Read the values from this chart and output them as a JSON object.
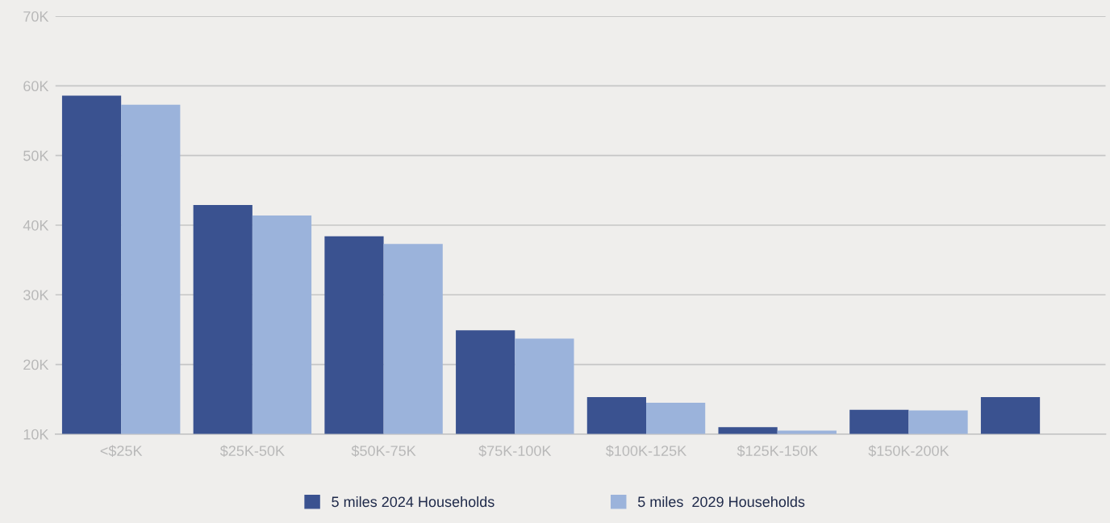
{
  "chart_data": {
    "type": "bar",
    "categories": [
      "<$25K",
      "$25K-50K",
      "$50K-75K",
      "$75K-100K",
      "$100K-125K",
      "$125K-150K",
      "$150K-200K",
      null
    ],
    "series": [
      {
        "name": "5 miles 2024 Households",
        "color": "#3a5290",
        "values": [
          58600,
          42900,
          38400,
          24900,
          15300,
          11000,
          13500,
          15300
        ]
      },
      {
        "name": "5 miles  2029 Households",
        "color": "#9bb3db",
        "values": [
          57300,
          41400,
          37300,
          23700,
          14500,
          10500,
          13400,
          null
        ]
      }
    ],
    "ylim": [
      10000,
      70000
    ],
    "yticks": [
      {
        "value": 10000,
        "label": "10K"
      },
      {
        "value": 20000,
        "label": "20K"
      },
      {
        "value": 30000,
        "label": "30K"
      },
      {
        "value": 40000,
        "label": "40K"
      },
      {
        "value": 50000,
        "label": "50K"
      },
      {
        "value": 60000,
        "label": "60K"
      },
      {
        "value": 70000,
        "label": "70K"
      }
    ],
    "grid": "y",
    "legend": "bottom"
  }
}
